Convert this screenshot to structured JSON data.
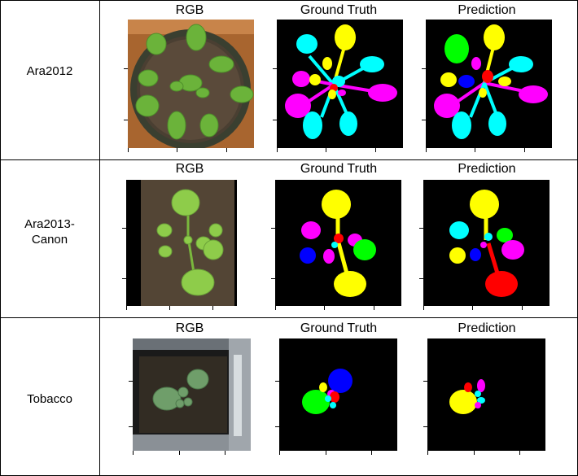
{
  "columns": [
    "RGB",
    "Ground Truth",
    "Prediction"
  ],
  "rows": [
    {
      "label_lines": [
        "Ara2012"
      ]
    },
    {
      "label_lines": [
        "Ara2013-",
        "Canon"
      ]
    },
    {
      "label_lines": [
        "Tobacco"
      ]
    }
  ],
  "colors": {
    "cyan": "#00ffff",
    "yellow": "#ffff00",
    "magenta": "#ff00ff",
    "red": "#ff0000",
    "blue": "#0000ff",
    "green": "#00ff00",
    "background": "#000000"
  }
}
